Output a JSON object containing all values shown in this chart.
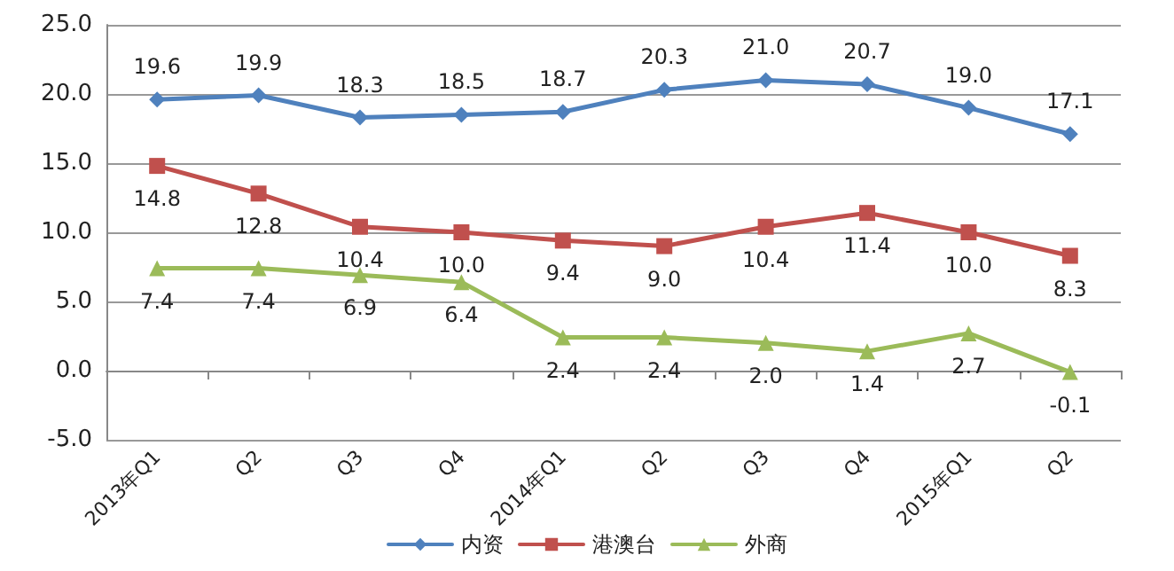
{
  "chart_data": {
    "type": "line",
    "categories": [
      "2013年Q1",
      "Q2",
      "Q3",
      "Q4",
      "2014年Q1",
      "Q2",
      "Q3",
      "Q4",
      "2015年Q1",
      "Q2"
    ],
    "series": [
      {
        "name": "内资",
        "color": "#4f81bd",
        "marker": "diamond",
        "values": [
          19.6,
          19.9,
          18.3,
          18.5,
          18.7,
          20.3,
          21.0,
          20.7,
          19.0,
          17.1
        ],
        "value_labels": [
          "19.6",
          "19.9",
          "18.3",
          "18.5",
          "18.7",
          "20.3",
          "21.0",
          "20.7",
          "19.0",
          "17.1"
        ]
      },
      {
        "name": "港澳台",
        "color": "#c0504d",
        "marker": "square",
        "values": [
          14.8,
          12.8,
          10.4,
          10.0,
          9.4,
          9.0,
          10.4,
          11.4,
          10.0,
          8.3
        ],
        "value_labels": [
          "14.8",
          "12.8",
          "10.4",
          "10.0",
          "9.4",
          "9.0",
          "10.4",
          "11.4",
          "10.0",
          "8.3"
        ]
      },
      {
        "name": "外商",
        "color": "#9bbb59",
        "marker": "triangle",
        "values": [
          7.4,
          7.4,
          6.9,
          6.4,
          2.4,
          2.4,
          2.0,
          1.4,
          2.7,
          -0.1
        ],
        "value_labels": [
          "7.4",
          "7.4",
          "6.9",
          "6.4",
          "2.4",
          "2.4",
          "2.0",
          "1.4",
          "2.7",
          "-0.1"
        ]
      }
    ],
    "ylim": [
      -5,
      25
    ],
    "yticks": [
      {
        "value": -5,
        "label": "-5.0"
      },
      {
        "value": 0,
        "label": "0.0"
      },
      {
        "value": 5,
        "label": "5.0"
      },
      {
        "value": 10,
        "label": "10.0"
      },
      {
        "value": 15,
        "label": "15.0"
      },
      {
        "value": 20,
        "label": "20.0"
      },
      {
        "value": 25,
        "label": "25.0"
      }
    ],
    "grid": "y",
    "legend": "bottom"
  }
}
